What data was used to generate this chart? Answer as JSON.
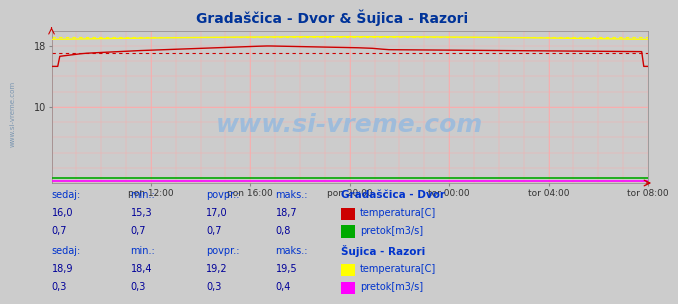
{
  "title": "Gradaščica - Dvor & Šujica - Razori",
  "title_color": "#003399",
  "bg_color": "#cccccc",
  "plot_bg_color": "#cccccc",
  "xlim": [
    0,
    288
  ],
  "ylim": [
    0,
    20
  ],
  "yticks": [
    10,
    18
  ],
  "xlabel_ticks": [
    48,
    96,
    144,
    192,
    240,
    288
  ],
  "xlabel_labels": [
    "pon 12:00",
    "pon 16:00",
    "pon 20:00",
    "tor 00:00",
    "tor 04:00",
    "tor 08:00"
  ],
  "grid_color": "#ffaaaa",
  "dvor_temp_color": "#cc0000",
  "dvor_pretok_color": "#00aa00",
  "razori_temp_color": "#ffff00",
  "razori_pretok_color": "#ff00ff",
  "dvor_temp_avg": 17.0,
  "razori_temp_avg": 19.2,
  "label_color": "#0033cc",
  "value_color": "#000099",
  "watermark": "www.si-vreme.com",
  "watermark_color": "#99bbdd"
}
